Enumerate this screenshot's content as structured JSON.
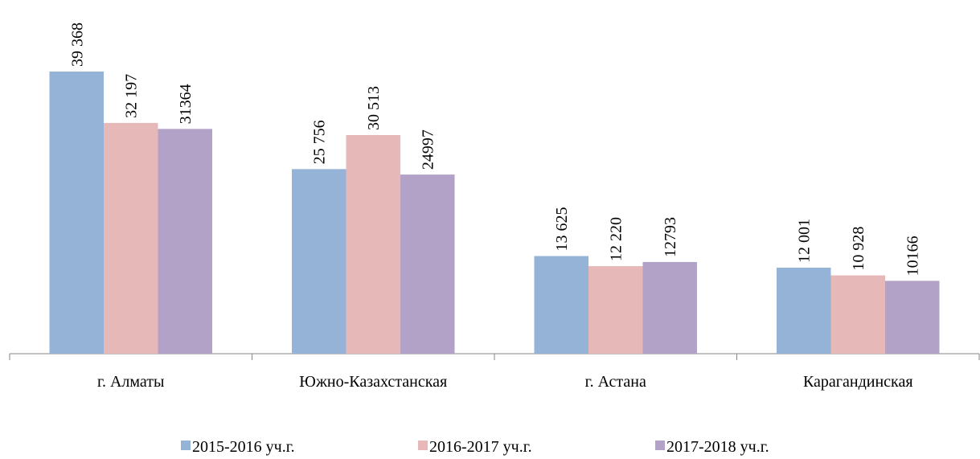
{
  "chart_data": {
    "type": "bar",
    "categories": [
      "г. Алматы",
      "Южно-Казахстанская",
      "г. Астана",
      "Карагандинская"
    ],
    "series": [
      {
        "name": "2015-2016 уч.г.",
        "color": "#95b3d7",
        "values": [
          39368,
          25756,
          13625,
          12001
        ],
        "value_labels": [
          "39 368",
          "25 756",
          "13 625",
          "12 001"
        ]
      },
      {
        "name": "2016-2017 уч.г.",
        "color": "#e6b9b8",
        "values": [
          32197,
          30513,
          12220,
          10928
        ],
        "value_labels": [
          "32 197",
          "30 513",
          "12 220",
          "10 928"
        ]
      },
      {
        "name": "2017-2018 уч.г.",
        "color": "#b3a2c7",
        "values": [
          31364,
          24997,
          12793,
          10166
        ],
        "value_labels": [
          "31364",
          "24997",
          "12793",
          "10166"
        ]
      }
    ]
  }
}
